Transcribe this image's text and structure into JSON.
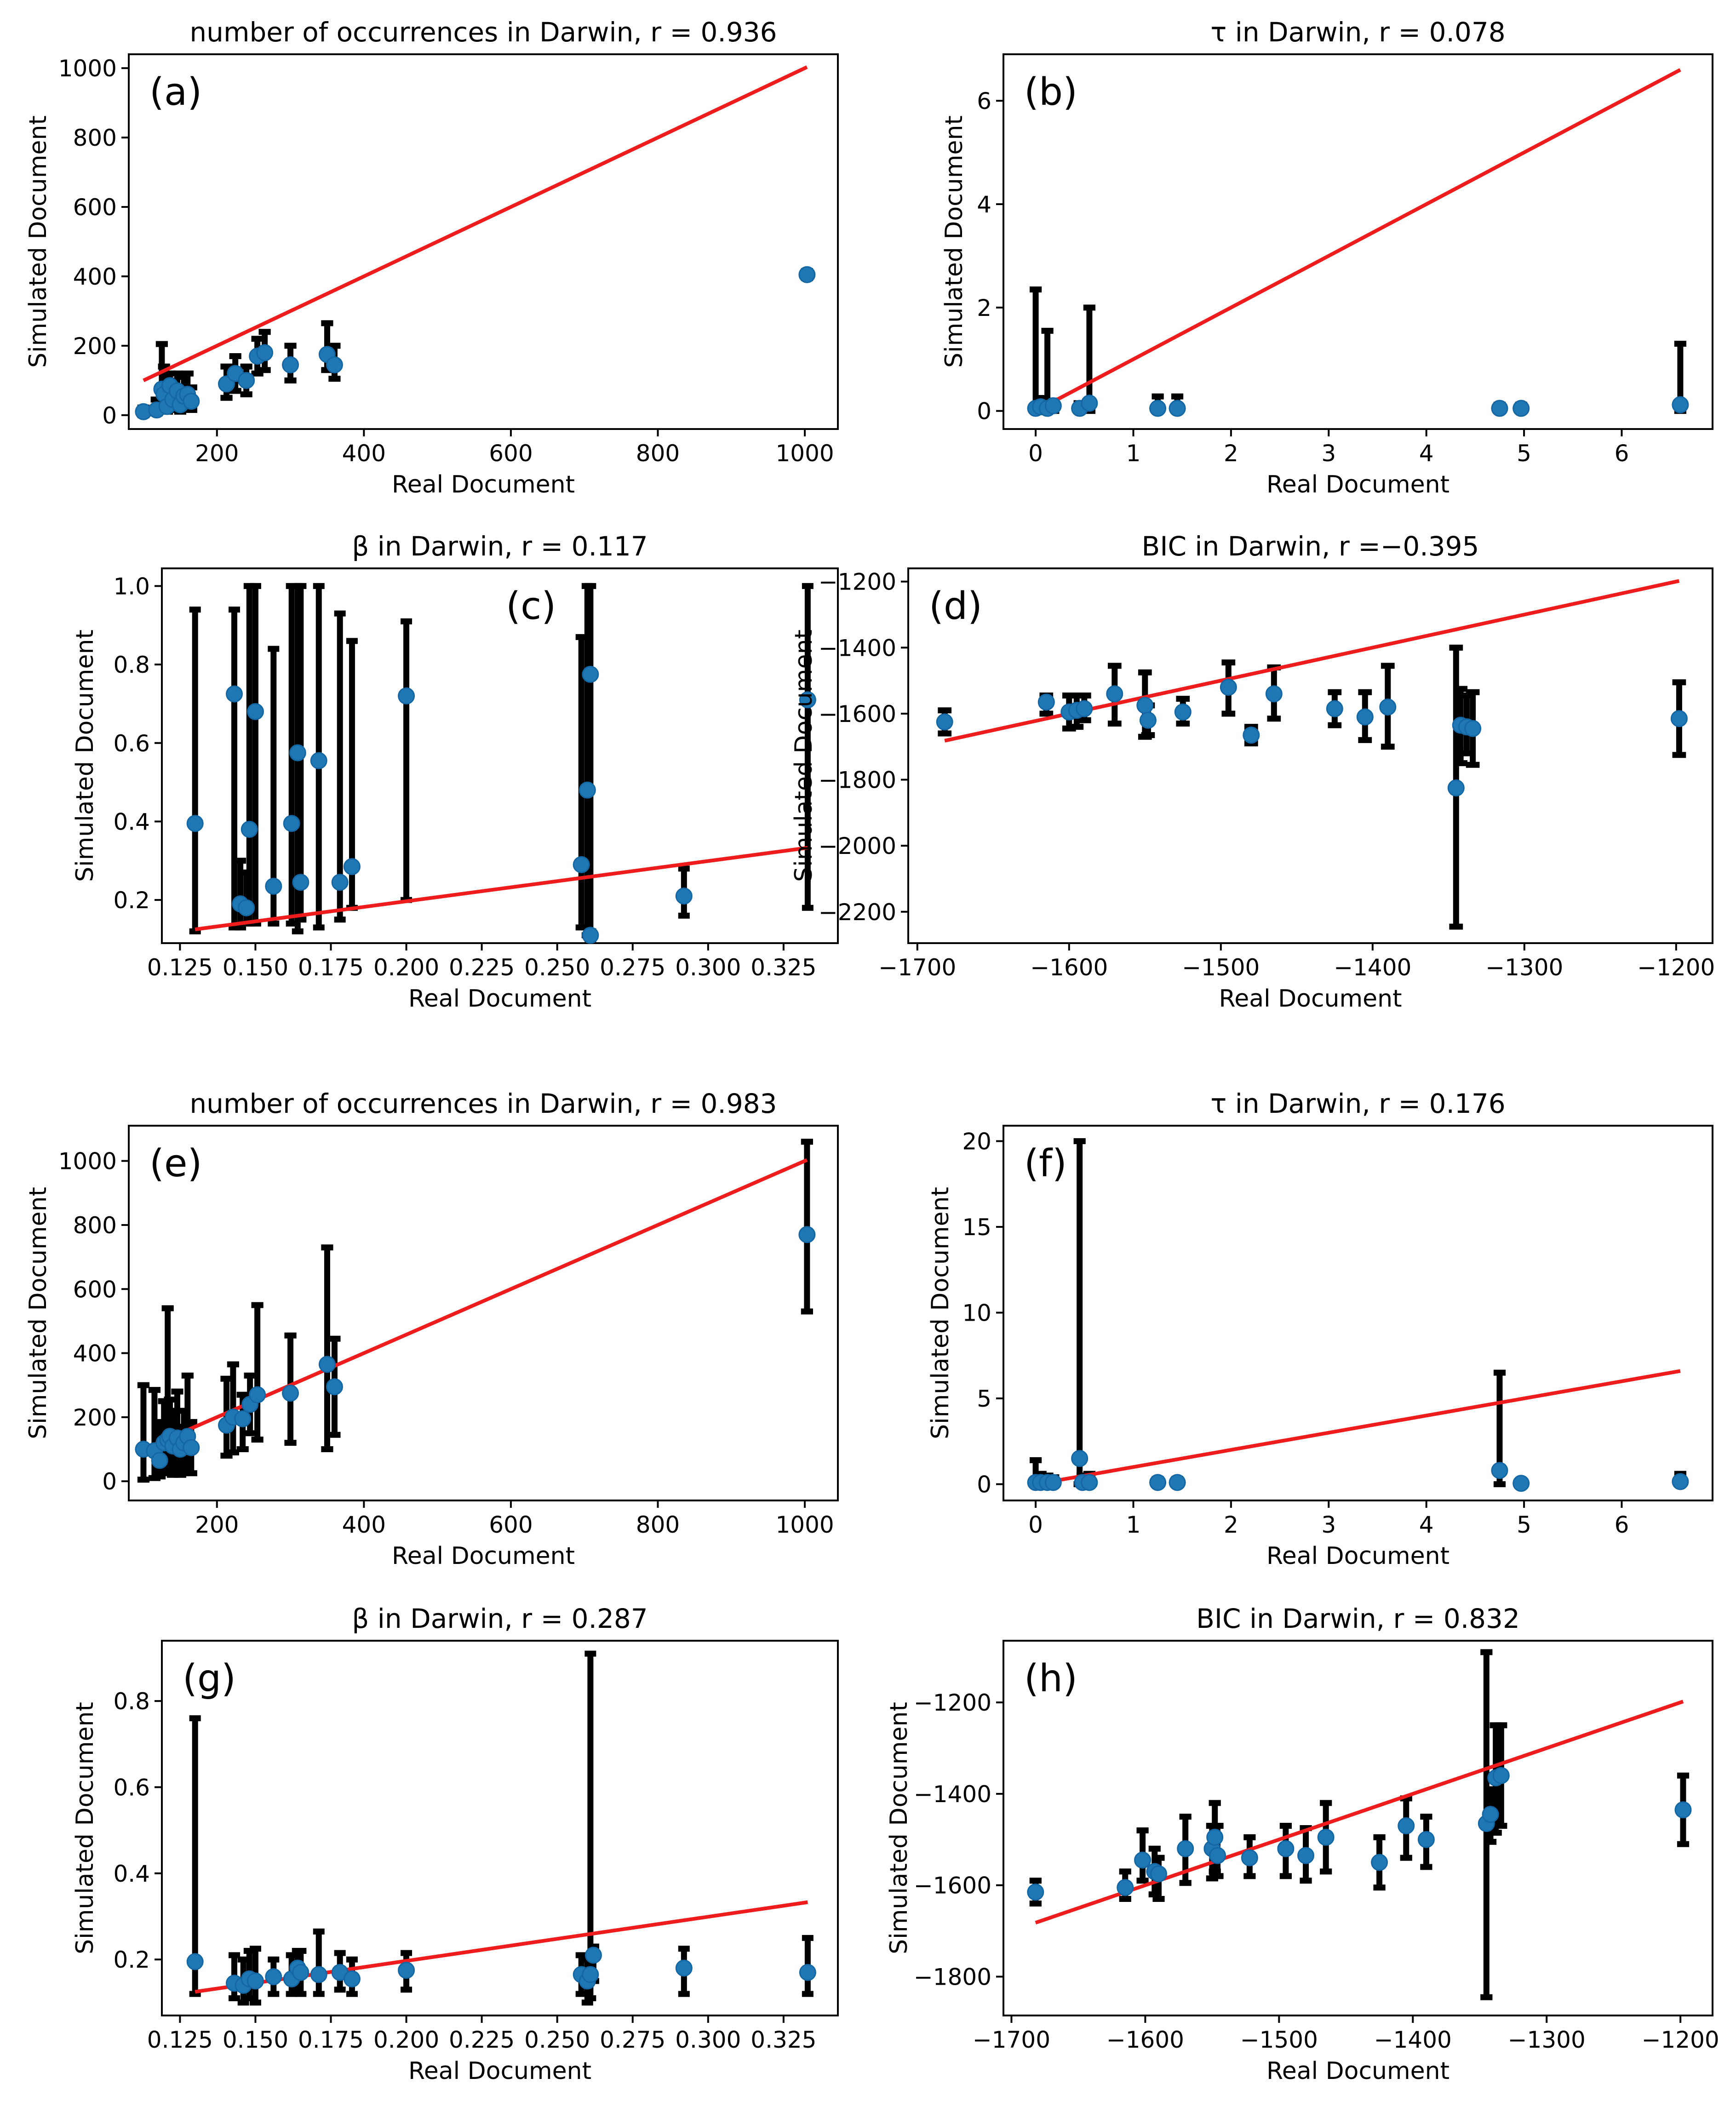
{
  "chart_data": [
    {
      "panel": "(a)",
      "type": "scatter",
      "title": "number of occurrences in Darwin,  r = 0.936",
      "xlabel": "Real Document",
      "ylabel": "Simulated Document",
      "xlim": [
        80,
        1045
      ],
      "ylim": [
        -40,
        1040
      ],
      "xticks": [
        200,
        400,
        600,
        800,
        1000
      ],
      "xtick_labels": [
        "200",
        "400",
        "600",
        "800",
        "1000"
      ],
      "yticks": [
        0,
        200,
        400,
        600,
        800,
        1000
      ],
      "ytick_labels": [
        "0",
        "200",
        "400",
        "600",
        "800",
        "1000"
      ],
      "fit_line": [
        [
          100,
          100
        ],
        [
          1003,
          1003
        ]
      ],
      "points": [
        [
          100,
          10,
          0,
          22
        ],
        [
          118,
          15,
          5,
          45
        ],
        [
          125,
          75,
          20,
          205
        ],
        [
          128,
          60,
          15,
          140
        ],
        [
          132,
          25,
          10,
          90
        ],
        [
          136,
          85,
          30,
          120
        ],
        [
          140,
          45,
          15,
          100
        ],
        [
          146,
          70,
          20,
          120
        ],
        [
          150,
          30,
          10,
          80
        ],
        [
          155,
          55,
          20,
          110
        ],
        [
          160,
          60,
          20,
          120
        ],
        [
          165,
          40,
          15,
          80
        ],
        [
          213,
          90,
          50,
          140
        ],
        [
          225,
          120,
          70,
          170
        ],
        [
          240,
          100,
          60,
          140
        ],
        [
          255,
          170,
          120,
          220
        ],
        [
          265,
          180,
          130,
          240
        ],
        [
          300,
          145,
          100,
          200
        ],
        [
          350,
          175,
          130,
          265
        ],
        [
          360,
          145,
          105,
          200
        ],
        [
          1003,
          405,
          395,
          415
        ]
      ]
    },
    {
      "panel": "(b)",
      "type": "scatter",
      "title": "τ   in Darwin,  r = 0.078",
      "xlabel": "Real Document",
      "ylabel": "Simulated Document",
      "xlim": [
        -0.33,
        6.93
      ],
      "ylim": [
        -0.35,
        6.9
      ],
      "xticks": [
        0,
        1,
        2,
        3,
        4,
        5,
        6
      ],
      "xtick_labels": [
        "0",
        "1",
        "2",
        "3",
        "4",
        "5",
        "6"
      ],
      "yticks": [
        0,
        2,
        4,
        6
      ],
      "ytick_labels": [
        "0",
        "2",
        "4",
        "6"
      ],
      "fit_line": [
        [
          0,
          0
        ],
        [
          6.6,
          6.6
        ]
      ],
      "points": [
        [
          0.0,
          0.05,
          0.0,
          2.35
        ],
        [
          0.05,
          0.08,
          0.0,
          0.25
        ],
        [
          0.12,
          0.05,
          0.0,
          1.55
        ],
        [
          0.18,
          0.1,
          0.0,
          0.2
        ],
        [
          0.45,
          0.05,
          0.0,
          0.15
        ],
        [
          0.55,
          0.15,
          0.0,
          2.0
        ],
        [
          1.25,
          0.05,
          0.0,
          0.28
        ],
        [
          1.45,
          0.05,
          0.0,
          0.28
        ],
        [
          4.75,
          0.05,
          0.0,
          0.12
        ],
        [
          4.97,
          0.05,
          0.0,
          0.12
        ],
        [
          6.6,
          0.12,
          0.0,
          1.3
        ]
      ]
    },
    {
      "panel": "(c)",
      "type": "scatter",
      "title": "β  in Darwin,  r = 0.117",
      "xlabel": "Real Document",
      "ylabel": "Simulated Document",
      "xlim": [
        0.119,
        0.343
      ],
      "ylim": [
        0.09,
        1.045
      ],
      "xticks": [
        0.125,
        0.15,
        0.175,
        0.2,
        0.225,
        0.25,
        0.275,
        0.3,
        0.325
      ],
      "xtick_labels": [
        "0.125",
        "0.150",
        "0.175",
        "0.200",
        "0.225",
        "0.250",
        "0.275",
        "0.300",
        "0.325"
      ],
      "yticks": [
        0.2,
        0.4,
        0.6,
        0.8,
        1.0
      ],
      "ytick_labels": [
        "0.2",
        "0.4",
        "0.6",
        "0.8",
        "1.0"
      ],
      "fit_line": [
        [
          0.13,
          0.125
        ],
        [
          0.333,
          0.333
        ]
      ],
      "points": [
        [
          0.13,
          0.395,
          0.12,
          0.94
        ],
        [
          0.143,
          0.725,
          0.13,
          0.94
        ],
        [
          0.145,
          0.19,
          0.13,
          0.3
        ],
        [
          0.147,
          0.18,
          0.14,
          0.27
        ],
        [
          0.148,
          0.38,
          0.14,
          1.0
        ],
        [
          0.15,
          0.68,
          0.14,
          1.0
        ],
        [
          0.156,
          0.235,
          0.14,
          0.84
        ],
        [
          0.162,
          0.395,
          0.14,
          1.0
        ],
        [
          0.164,
          0.575,
          0.12,
          1.0
        ],
        [
          0.165,
          0.245,
          0.15,
          1.0
        ],
        [
          0.171,
          0.555,
          0.13,
          1.0
        ],
        [
          0.178,
          0.245,
          0.15,
          0.93
        ],
        [
          0.182,
          0.285,
          0.18,
          0.86
        ],
        [
          0.2,
          0.72,
          0.2,
          0.91
        ],
        [
          0.258,
          0.29,
          0.13,
          0.87
        ],
        [
          0.26,
          0.48,
          0.11,
          1.0
        ],
        [
          0.261,
          0.775,
          0.12,
          1.0
        ],
        [
          0.261,
          0.11,
          0.1,
          0.12
        ],
        [
          0.292,
          0.21,
          0.16,
          0.28
        ],
        [
          0.333,
          0.71,
          0.18,
          1.0
        ]
      ]
    },
    {
      "panel": "(d)",
      "type": "scatter",
      "title": "BIC in Darwin,  r =−0.395",
      "xlabel": "Real Document",
      "ylabel": "Simulated Document",
      "xlim": [
        -1706,
        -1176
      ],
      "ylim": [
        -2295,
        -1160
      ],
      "xticks": [
        -1700,
        -1600,
        -1500,
        -1400,
        -1300,
        -1200
      ],
      "xtick_labels": [
        "−1700",
        "−1600",
        "−1500",
        "−1400",
        "−1300",
        "−1200"
      ],
      "yticks": [
        -2200,
        -2000,
        -1800,
        -1600,
        -1400,
        -1200
      ],
      "ytick_labels": [
        "−2200",
        "−2000",
        "−1800",
        "−1600",
        "−1400",
        "−1200"
      ],
      "fit_line": [
        [
          -1682,
          -1682
        ],
        [
          -1198,
          -1198
        ]
      ],
      "points": [
        [
          -1682,
          -1625,
          -1660,
          -1590
        ],
        [
          -1615,
          -1565,
          -1600,
          -1545
        ],
        [
          -1600,
          -1595,
          -1645,
          -1545
        ],
        [
          -1595,
          -1590,
          -1640,
          -1545
        ],
        [
          -1590,
          -1585,
          -1620,
          -1545
        ],
        [
          -1570,
          -1540,
          -1630,
          -1455
        ],
        [
          -1550,
          -1575,
          -1670,
          -1475
        ],
        [
          -1548,
          -1620,
          -1665,
          -1575
        ],
        [
          -1525,
          -1595,
          -1630,
          -1555
        ],
        [
          -1495,
          -1520,
          -1600,
          -1445
        ],
        [
          -1480,
          -1665,
          -1690,
          -1640
        ],
        [
          -1465,
          -1540,
          -1615,
          -1460
        ],
        [
          -1425,
          -1585,
          -1635,
          -1535
        ],
        [
          -1405,
          -1610,
          -1680,
          -1535
        ],
        [
          -1390,
          -1580,
          -1700,
          -1455
        ],
        [
          -1345,
          -1825,
          -2245,
          -1400
        ],
        [
          -1342,
          -1635,
          -1750,
          -1525
        ],
        [
          -1338,
          -1640,
          -1720,
          -1545
        ],
        [
          -1334,
          -1645,
          -1755,
          -1535
        ],
        [
          -1198,
          -1615,
          -1725,
          -1505
        ]
      ]
    },
    {
      "panel": "(e)",
      "type": "scatter",
      "title": "number of occurrences in Darwin,  r = 0.983",
      "xlabel": "Real Document",
      "ylabel": "Simulated Document",
      "xlim": [
        80,
        1045
      ],
      "ylim": [
        -60,
        1110
      ],
      "xticks": [
        200,
        400,
        600,
        800,
        1000
      ],
      "xtick_labels": [
        "200",
        "400",
        "600",
        "800",
        "1000"
      ],
      "yticks": [
        0,
        200,
        400,
        600,
        800,
        1000
      ],
      "ytick_labels": [
        "0",
        "200",
        "400",
        "600",
        "800",
        "1000"
      ],
      "fit_line": [
        [
          100,
          100
        ],
        [
          1003,
          1003
        ]
      ],
      "points": [
        [
          100,
          100,
          5,
          300
        ],
        [
          115,
          95,
          10,
          285
        ],
        [
          122,
          65,
          15,
          185
        ],
        [
          128,
          120,
          25,
          250
        ],
        [
          133,
          130,
          30,
          540
        ],
        [
          136,
          140,
          35,
          255
        ],
        [
          140,
          110,
          20,
          220
        ],
        [
          146,
          135,
          30,
          280
        ],
        [
          150,
          100,
          20,
          170
        ],
        [
          155,
          120,
          25,
          220
        ],
        [
          160,
          140,
          30,
          330
        ],
        [
          165,
          105,
          25,
          185
        ],
        [
          213,
          175,
          80,
          320
        ],
        [
          222,
          200,
          90,
          365
        ],
        [
          235,
          195,
          100,
          270
        ],
        [
          245,
          240,
          150,
          330
        ],
        [
          255,
          270,
          130,
          550
        ],
        [
          300,
          275,
          120,
          455
        ],
        [
          350,
          365,
          100,
          730
        ],
        [
          360,
          295,
          145,
          445
        ],
        [
          1003,
          770,
          530,
          1060
        ]
      ]
    },
    {
      "panel": "(f)",
      "type": "scatter",
      "title": "τ   in Darwin,  r = 0.176",
      "xlabel": "Real Document",
      "ylabel": "Simulated Document",
      "xlim": [
        -0.33,
        6.93
      ],
      "ylim": [
        -0.95,
        20.9
      ],
      "xticks": [
        0,
        1,
        2,
        3,
        4,
        5,
        6
      ],
      "xtick_labels": [
        "0",
        "1",
        "2",
        "3",
        "4",
        "5",
        "6"
      ],
      "yticks": [
        0,
        5,
        10,
        15,
        20
      ],
      "ytick_labels": [
        "0",
        "5",
        "10",
        "15",
        "20"
      ],
      "fit_line": [
        [
          0,
          0
        ],
        [
          6.6,
          6.6
        ]
      ],
      "points": [
        [
          0.0,
          0.1,
          0.0,
          1.4
        ],
        [
          0.05,
          0.1,
          0.0,
          0.6
        ],
        [
          0.12,
          0.1,
          0.0,
          0.5
        ],
        [
          0.18,
          0.1,
          0.0,
          0.4
        ],
        [
          0.45,
          1.5,
          0.0,
          20.0
        ],
        [
          0.48,
          0.1,
          0.0,
          0.5
        ],
        [
          0.55,
          0.1,
          0.0,
          0.6
        ],
        [
          1.25,
          0.1,
          0.0,
          0.3
        ],
        [
          1.45,
          0.1,
          0.0,
          0.3
        ],
        [
          4.75,
          0.8,
          0.0,
          6.5
        ],
        [
          4.97,
          0.05,
          0.0,
          0.2
        ],
        [
          6.6,
          0.15,
          0.0,
          0.6
        ]
      ]
    },
    {
      "panel": "(g)",
      "type": "scatter",
      "title": "β  in Darwin,  r = 0.287",
      "xlabel": "Real Document",
      "ylabel": "Simulated Document",
      "xlim": [
        0.119,
        0.343
      ],
      "ylim": [
        0.07,
        0.94
      ],
      "xticks": [
        0.125,
        0.15,
        0.175,
        0.2,
        0.225,
        0.25,
        0.275,
        0.3,
        0.325
      ],
      "xtick_labels": [
        "0.125",
        "0.150",
        "0.175",
        "0.200",
        "0.225",
        "0.250",
        "0.275",
        "0.300",
        "0.325"
      ],
      "yticks": [
        0.2,
        0.4,
        0.6,
        0.8
      ],
      "ytick_labels": [
        "0.2",
        "0.4",
        "0.6",
        "0.8"
      ],
      "fit_line": [
        [
          0.13,
          0.125
        ],
        [
          0.333,
          0.333
        ]
      ],
      "points": [
        [
          0.13,
          0.195,
          0.12,
          0.76
        ],
        [
          0.143,
          0.145,
          0.11,
          0.21
        ],
        [
          0.146,
          0.14,
          0.1,
          0.2
        ],
        [
          0.148,
          0.155,
          0.11,
          0.22
        ],
        [
          0.15,
          0.15,
          0.1,
          0.225
        ],
        [
          0.156,
          0.16,
          0.12,
          0.2
        ],
        [
          0.162,
          0.155,
          0.12,
          0.21
        ],
        [
          0.164,
          0.18,
          0.13,
          0.22
        ],
        [
          0.165,
          0.17,
          0.12,
          0.22
        ],
        [
          0.171,
          0.165,
          0.12,
          0.265
        ],
        [
          0.178,
          0.17,
          0.13,
          0.215
        ],
        [
          0.182,
          0.155,
          0.12,
          0.2
        ],
        [
          0.2,
          0.175,
          0.13,
          0.215
        ],
        [
          0.258,
          0.165,
          0.12,
          0.21
        ],
        [
          0.26,
          0.15,
          0.1,
          0.2
        ],
        [
          0.261,
          0.165,
          0.11,
          0.91
        ],
        [
          0.262,
          0.21,
          0.15,
          0.23
        ],
        [
          0.292,
          0.18,
          0.12,
          0.225
        ],
        [
          0.333,
          0.17,
          0.12,
          0.25
        ]
      ]
    },
    {
      "panel": "(h)",
      "type": "scatter",
      "title": "BIC in Darwin,  r = 0.832",
      "xlabel": "Real Document",
      "ylabel": "Simulated Document",
      "xlim": [
        -1706,
        -1176
      ],
      "ylim": [
        -1885,
        -1065
      ],
      "xticks": [
        -1700,
        -1600,
        -1500,
        -1400,
        -1300,
        -1200
      ],
      "xtick_labels": [
        "−1700",
        "−1600",
        "−1500",
        "−1400",
        "−1300",
        "−1200"
      ],
      "yticks": [
        -1800,
        -1600,
        -1400,
        -1200
      ],
      "ytick_labels": [
        "−1800",
        "−1600",
        "−1400",
        "−1200"
      ],
      "fit_line": [
        [
          -1682,
          -1682
        ],
        [
          -1198,
          -1198
        ]
      ],
      "points": [
        [
          -1682,
          -1615,
          -1640,
          -1590
        ],
        [
          -1615,
          -1605,
          -1630,
          -1570
        ],
        [
          -1602,
          -1545,
          -1590,
          -1480
        ],
        [
          -1593,
          -1570,
          -1620,
          -1520
        ],
        [
          -1590,
          -1575,
          -1630,
          -1540
        ],
        [
          -1570,
          -1520,
          -1595,
          -1450
        ],
        [
          -1550,
          -1520,
          -1585,
          -1470
        ],
        [
          -1548,
          -1495,
          -1570,
          -1420
        ],
        [
          -1546,
          -1535,
          -1580,
          -1470
        ],
        [
          -1522,
          -1540,
          -1580,
          -1495
        ],
        [
          -1495,
          -1520,
          -1580,
          -1470
        ],
        [
          -1480,
          -1535,
          -1590,
          -1475
        ],
        [
          -1465,
          -1495,
          -1570,
          -1420
        ],
        [
          -1425,
          -1550,
          -1605,
          -1495
        ],
        [
          -1405,
          -1470,
          -1540,
          -1410
        ],
        [
          -1390,
          -1500,
          -1560,
          -1450
        ],
        [
          -1345,
          -1465,
          -1845,
          -1090
        ],
        [
          -1342,
          -1445,
          -1505,
          -1390
        ],
        [
          -1338,
          -1365,
          -1485,
          -1250
        ],
        [
          -1334,
          -1360,
          -1470,
          -1250
        ],
        [
          -1198,
          -1435,
          -1510,
          -1360
        ]
      ]
    }
  ]
}
